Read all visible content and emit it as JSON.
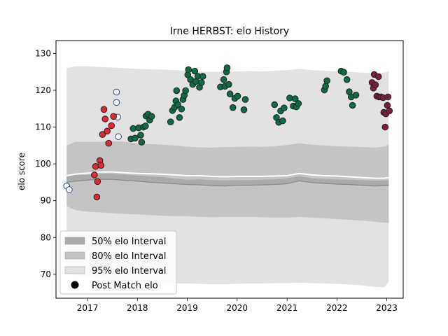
{
  "chart_data": {
    "type": "scatter",
    "title": "Irne HERBST: elo History",
    "xlabel": "",
    "ylabel": "elo score",
    "xlim": [
      "2016-05-15",
      "2023-05-01"
    ],
    "ylim": [
      63.5,
      133.5
    ],
    "x_ticks": [
      "2017-01-01",
      "2018-01-01",
      "2019-01-01",
      "2020-01-01",
      "2021-01-01",
      "2022-01-01",
      "2023-01-01"
    ],
    "x_tick_labels": [
      "2017",
      "2018",
      "2019",
      "2020",
      "2021",
      "2022",
      "2023"
    ],
    "y_ticks": [
      70,
      80,
      90,
      100,
      110,
      120,
      130
    ],
    "y_tick_labels": [
      "70",
      "80",
      "90",
      "100",
      "110",
      "120",
      "130"
    ],
    "grid": false,
    "legend_position": "lower-left",
    "legend": [
      {
        "label": "50% elo Interval",
        "kind": "patch",
        "color": "#aaaaaa"
      },
      {
        "label": "80% elo Interval",
        "kind": "patch",
        "color": "#c4c4c4"
      },
      {
        "label": "95% elo Interval",
        "kind": "patch",
        "color": "#e2e2e2"
      },
      {
        "label": "Post Match elo",
        "kind": "marker",
        "color": "#000000"
      }
    ],
    "bands": {
      "x": [
        "2016-08-01",
        "2016-10-01",
        "2017-01-01",
        "2017-04-01",
        "2017-07-01",
        "2017-10-01",
        "2018-01-01",
        "2018-04-01",
        "2018-07-01",
        "2018-10-01",
        "2019-01-01",
        "2019-04-01",
        "2019-07-01",
        "2019-10-01",
        "2020-01-01",
        "2020-04-01",
        "2020-07-01",
        "2020-10-01",
        "2021-01-01",
        "2021-04-01",
        "2021-07-01",
        "2021-10-01",
        "2022-01-01",
        "2022-04-01",
        "2022-07-01",
        "2022-10-01",
        "2022-12-15",
        "2023-01-15"
      ],
      "mean": [
        96.8,
        97.2,
        97.5,
        97.8,
        97.8,
        97.6,
        97.4,
        97.3,
        97.2,
        97.0,
        96.8,
        96.8,
        96.6,
        96.5,
        96.6,
        96.6,
        96.6,
        96.7,
        96.8,
        97.4,
        97.0,
        96.8,
        96.7,
        96.5,
        96.3,
        96.1,
        96.1,
        96.3
      ],
      "interval_50": {
        "upper": [
          96.5,
          97.0,
          97.0,
          97.3,
          97.3,
          97.1,
          96.8,
          96.6,
          96.4,
          96.0,
          95.7,
          95.8,
          95.6,
          95.5,
          95.6,
          95.6,
          95.7,
          95.8,
          96.1,
          96.6,
          96.1,
          95.9,
          95.8,
          95.7,
          95.6,
          95.4,
          95.5,
          95.6
        ],
        "lower": [
          95.0,
          95.3,
          95.6,
          95.8,
          95.8,
          95.5,
          95.3,
          95.0,
          94.8,
          94.6,
          94.4,
          94.3,
          94.1,
          94.0,
          94.2,
          94.2,
          94.3,
          94.4,
          94.6,
          95.4,
          94.9,
          94.7,
          94.5,
          94.4,
          94.2,
          94.0,
          94.1,
          94.2
        ]
      },
      "interval_80": {
        "upper": [
          105.0,
          106.0,
          106.0,
          106.0,
          106.2,
          106.0,
          105.6,
          105.4,
          105.2,
          105.0,
          104.7,
          104.5,
          104.4,
          104.6,
          104.6,
          104.7,
          104.6,
          104.8,
          105.1,
          105.6,
          105.2,
          105.0,
          104.8,
          104.7,
          104.6,
          104.4,
          104.7,
          105.2
        ],
        "lower": [
          88.5,
          87.5,
          87.0,
          86.8,
          86.6,
          86.4,
          86.3,
          86.1,
          85.9,
          85.8,
          85.8,
          85.6,
          85.5,
          85.6,
          85.6,
          85.6,
          85.5,
          85.4,
          85.4,
          85.6,
          85.4,
          85.2,
          85.0,
          84.8,
          84.6,
          84.3,
          84.0,
          84.0
        ]
      },
      "interval_95": {
        "upper": [
          126.0,
          126.5,
          126.5,
          126.3,
          126.2,
          126.0,
          125.8,
          125.7,
          125.6,
          125.5,
          125.3,
          125.1,
          125.0,
          125.1,
          125.1,
          125.2,
          125.1,
          125.3,
          125.5,
          125.8,
          125.5,
          125.3,
          125.1,
          125.0,
          124.8,
          124.6,
          124.8,
          125.2
        ],
        "lower": [
          70.5,
          70.0,
          69.5,
          69.0,
          68.5,
          68.2,
          68.0,
          67.8,
          67.6,
          67.5,
          67.5,
          67.4,
          67.3,
          67.3,
          67.4,
          67.5,
          67.5,
          67.6,
          67.6,
          67.7,
          67.6,
          67.5,
          67.4,
          67.2,
          67.0,
          66.6,
          66.5,
          68.0
        ]
      }
    },
    "series": [
      {
        "color": "#ffffff",
        "points": [
          [
            "2016-08-01",
            94.0
          ],
          [
            "2016-08-20",
            93.0
          ],
          [
            "2017-08-01",
            119.5
          ],
          [
            "2017-08-01",
            116.7
          ],
          [
            "2017-08-10",
            112.7
          ],
          [
            "2017-08-15",
            107.4
          ]
        ]
      },
      {
        "color": "#dd2a33",
        "points": [
          [
            "2017-02-20",
            97.0
          ],
          [
            "2017-03-01",
            99.3
          ],
          [
            "2017-03-10",
            91.0
          ],
          [
            "2017-03-15",
            95.2
          ],
          [
            "2017-04-01",
            100.9
          ],
          [
            "2017-04-10",
            99.6
          ],
          [
            "2017-04-20",
            108.0
          ],
          [
            "2017-05-01",
            114.8
          ],
          [
            "2017-05-10",
            112.2
          ],
          [
            "2017-05-25",
            108.9
          ],
          [
            "2017-06-05",
            105.6
          ],
          [
            "2017-06-25",
            110.4
          ],
          [
            "2017-07-10",
            112.9
          ]
        ]
      },
      {
        "color": "#0e6b44",
        "points": [
          [
            "2017-11-15",
            106.8
          ],
          [
            "2017-12-01",
            109.6
          ],
          [
            "2017-12-15",
            107.0
          ],
          [
            "2018-01-10",
            109.8
          ],
          [
            "2018-01-25",
            107.8
          ],
          [
            "2018-02-01",
            105.9
          ],
          [
            "2018-02-15",
            110.0
          ],
          [
            "2018-03-01",
            110.3
          ],
          [
            "2018-03-05",
            113.0
          ],
          [
            "2018-03-20",
            113.5
          ],
          [
            "2018-04-01",
            111.9
          ],
          [
            "2018-04-15",
            112.9
          ],
          [
            "2018-09-01",
            111.4
          ],
          [
            "2018-09-15",
            114.5
          ],
          [
            "2018-10-01",
            115.4
          ],
          [
            "2018-10-10",
            117.1
          ],
          [
            "2018-10-15",
            119.9
          ],
          [
            "2018-10-25",
            116.1
          ],
          [
            "2018-11-05",
            112.6
          ],
          [
            "2018-11-20",
            114.9
          ],
          [
            "2018-12-01",
            117.5
          ],
          [
            "2018-12-10",
            118.6
          ],
          [
            "2018-12-20",
            119.9
          ],
          [
            "2019-01-05",
            124.2
          ],
          [
            "2019-01-10",
            125.6
          ],
          [
            "2019-01-25",
            122.9
          ],
          [
            "2019-02-10",
            121.6
          ],
          [
            "2019-02-25",
            125.2
          ],
          [
            "2019-03-05",
            122.4
          ],
          [
            "2019-03-20",
            123.8
          ],
          [
            "2019-04-01",
            120.8
          ],
          [
            "2019-04-15",
            122.1
          ],
          [
            "2019-04-25",
            123.8
          ],
          [
            "2019-09-01",
            120.9
          ],
          [
            "2019-09-25",
            122.9
          ],
          [
            "2019-10-05",
            121.1
          ],
          [
            "2019-10-15",
            125.0
          ],
          [
            "2019-10-20",
            126.1
          ],
          [
            "2019-11-01",
            121.6
          ],
          [
            "2019-11-10",
            119.0
          ],
          [
            "2019-12-01",
            115.3
          ],
          [
            "2019-12-15",
            117.8
          ],
          [
            "2020-01-05",
            118.4
          ],
          [
            "2020-02-20",
            114.7
          ],
          [
            "2020-03-01",
            117.5
          ],
          [
            "2020-10-01",
            116.1
          ],
          [
            "2020-10-15",
            112.6
          ],
          [
            "2020-11-01",
            111.3
          ],
          [
            "2020-11-15",
            114.4
          ],
          [
            "2020-11-30",
            111.7
          ],
          [
            "2020-12-10",
            115.2
          ],
          [
            "2021-01-20",
            117.9
          ],
          [
            "2021-02-15",
            115.7
          ],
          [
            "2021-03-01",
            117.7
          ],
          [
            "2021-03-10",
            115.5
          ],
          [
            "2021-03-25",
            116.4
          ],
          [
            "2021-10-01",
            120.1
          ],
          [
            "2021-10-10",
            121.1
          ],
          [
            "2021-10-20",
            122.6
          ],
          [
            "2022-02-01",
            125.2
          ],
          [
            "2022-02-20",
            124.9
          ],
          [
            "2022-03-15",
            122.9
          ],
          [
            "2022-04-01",
            119.6
          ],
          [
            "2022-04-15",
            118.2
          ],
          [
            "2022-04-25",
            115.9
          ],
          [
            "2022-05-20",
            118.7
          ]
        ]
      },
      {
        "color": "#7e1c3e",
        "points": [
          [
            "2022-09-15",
            122.1
          ],
          [
            "2022-09-25",
            120.6
          ],
          [
            "2022-10-01",
            124.3
          ],
          [
            "2022-10-10",
            121.5
          ],
          [
            "2022-10-20",
            118.4
          ],
          [
            "2022-11-01",
            123.7
          ],
          [
            "2022-11-05",
            118.2
          ],
          [
            "2022-11-20",
            118.2
          ],
          [
            "2022-12-05",
            118.0
          ],
          [
            "2022-12-10",
            114.0
          ],
          [
            "2022-12-20",
            110.0
          ],
          [
            "2022-12-25",
            113.6
          ],
          [
            "2023-01-05",
            115.9
          ],
          [
            "2023-01-10",
            118.2
          ],
          [
            "2023-01-20",
            114.4
          ]
        ]
      }
    ]
  }
}
